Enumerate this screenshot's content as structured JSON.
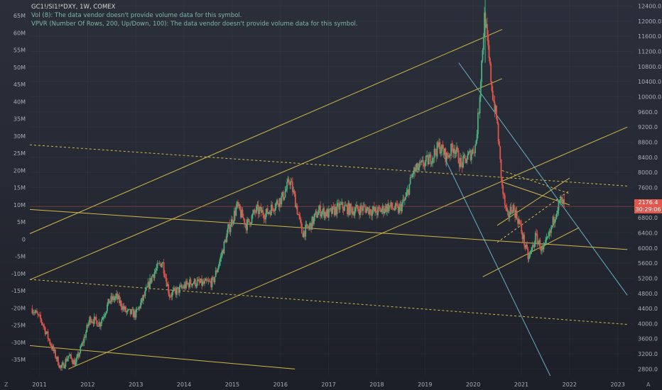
{
  "header": {
    "title": "GC1!/SI1!*DXY, 1W, COMEX",
    "vol_note": "Vol (8): The data vendor doesn't provide volume data for this symbol.",
    "vpvr_note": "VPVR (Number Of Rows, 200, Up/Down, 100): The data vendor doesn't provide volume data for this symbol."
  },
  "price_tag": {
    "price": "2176.4",
    "countdown": "30:29:06"
  },
  "corner_labels": {
    "left": "Z",
    "right": "A"
  },
  "colors": {
    "up": "#4caf7d",
    "down": "#e0534b",
    "channel": "#e6c84a",
    "trend": "#6fbfd0",
    "axis_text": "#a9adb7",
    "price_line": "#e1574d"
  },
  "chart_data": {
    "type": "candlestick",
    "title": "GC1!/SI1!*DXY, 1W, COMEX",
    "x_tick_labels": [
      "2011",
      "2012",
      "2013",
      "2014",
      "2015",
      "2016",
      "2017",
      "2018",
      "2019",
      "2020",
      "2021",
      "2022",
      "2023"
    ],
    "x_range": [
      2010.8,
      2023.3
    ],
    "y_tick_labels": [
      "12400.0",
      "12000.0",
      "11600.0",
      "11200.0",
      "10800.0",
      "10400.0",
      "10000.0",
      "9600.0",
      "9200.0",
      "8800.0",
      "8400.0",
      "8000.0",
      "7600.0",
      "7200.0",
      "6800.0",
      "6400.0",
      "6000.0",
      "5600.0",
      "5200.0",
      "4800.0",
      "4400.0",
      "4000.0",
      "3600.0",
      "3200.0",
      "2800.0"
    ],
    "y_range": [
      2620,
      12560
    ],
    "left_axis_labels": [
      "65M",
      "60M",
      "55M",
      "50M",
      "45M",
      "40M",
      "35M",
      "30M",
      "25M",
      "20M",
      "15M",
      "10M",
      "5M",
      "0",
      "-5M",
      "-10M",
      "-15M",
      "-20M",
      "-25M",
      "-30M",
      "-35M"
    ],
    "last_price": 2176.4,
    "anchors": [
      [
        2010.85,
        4400
      ],
      [
        2011.05,
        4050
      ],
      [
        2011.25,
        3400
      ],
      [
        2011.45,
        2800
      ],
      [
        2011.6,
        3150
      ],
      [
        2011.75,
        2950
      ],
      [
        2011.9,
        3500
      ],
      [
        2012.05,
        4150
      ],
      [
        2012.25,
        4000
      ],
      [
        2012.45,
        4600
      ],
      [
        2012.6,
        4700
      ],
      [
        2012.8,
        4300
      ],
      [
        2013.0,
        4250
      ],
      [
        2013.2,
        4800
      ],
      [
        2013.35,
        5300
      ],
      [
        2013.55,
        5650
      ],
      [
        2013.7,
        4750
      ],
      [
        2013.9,
        4900
      ],
      [
        2014.15,
        5100
      ],
      [
        2014.4,
        5050
      ],
      [
        2014.6,
        5100
      ],
      [
        2014.75,
        5700
      ],
      [
        2014.9,
        6400
      ],
      [
        2015.1,
        7100
      ],
      [
        2015.3,
        6600
      ],
      [
        2015.5,
        7000
      ],
      [
        2015.7,
        6900
      ],
      [
        2015.85,
        7100
      ],
      [
        2016.05,
        7350
      ],
      [
        2016.2,
        7800
      ],
      [
        2016.3,
        7300
      ],
      [
        2016.45,
        6400
      ],
      [
        2016.6,
        6550
      ],
      [
        2016.8,
        7000
      ],
      [
        2017.0,
        6900
      ],
      [
        2017.25,
        7100
      ],
      [
        2017.5,
        7000
      ],
      [
        2017.75,
        7050
      ],
      [
        2018.0,
        6950
      ],
      [
        2018.25,
        7100
      ],
      [
        2018.45,
        7000
      ],
      [
        2018.6,
        7300
      ],
      [
        2018.75,
        8000
      ],
      [
        2018.9,
        8150
      ],
      [
        2019.1,
        8350
      ],
      [
        2019.3,
        8700
      ],
      [
        2019.45,
        8400
      ],
      [
        2019.6,
        8700
      ],
      [
        2019.75,
        8200
      ],
      [
        2019.95,
        8500
      ],
      [
        2020.05,
        8700
      ],
      [
        2020.12,
        9700
      ],
      [
        2020.18,
        11000
      ],
      [
        2020.24,
        12200
      ],
      [
        2020.32,
        11100
      ],
      [
        2020.4,
        10100
      ],
      [
        2020.5,
        9300
      ],
      [
        2020.6,
        7600
      ],
      [
        2020.7,
        6800
      ],
      [
        2020.82,
        7100
      ],
      [
        2020.95,
        6700
      ],
      [
        2021.05,
        6200
      ],
      [
        2021.15,
        5700
      ],
      [
        2021.3,
        6300
      ],
      [
        2021.45,
        5900
      ],
      [
        2021.6,
        6400
      ],
      [
        2021.72,
        7000
      ],
      [
        2021.82,
        7250
      ],
      [
        2021.9,
        7100
      ]
    ],
    "lines": [
      {
        "kind": "channel",
        "style": "solid",
        "p1": [
          2010.8,
          6380
        ],
        "p2": [
          2020.6,
          11780
        ]
      },
      {
        "kind": "channel",
        "style": "solid",
        "p1": [
          2010.8,
          5160
        ],
        "p2": [
          2020.6,
          10480
        ]
      },
      {
        "kind": "channel",
        "style": "solid",
        "p1": [
          2011.6,
          2800
        ],
        "p2": [
          2023.2,
          9200
        ]
      },
      {
        "kind": "channel",
        "style": "solid",
        "p1": [
          2010.8,
          7020
        ],
        "p2": [
          2023.2,
          5960
        ]
      },
      {
        "kind": "channel",
        "style": "solid",
        "p1": [
          2010.8,
          3420
        ],
        "p2": [
          2016.3,
          2800
        ]
      },
      {
        "kind": "channel",
        "style": "dashed",
        "p1": [
          2010.8,
          8730
        ],
        "p2": [
          2023.2,
          7640
        ]
      },
      {
        "kind": "channel",
        "style": "dashed",
        "p1": [
          2010.8,
          5170
        ],
        "p2": [
          2023.2,
          3980
        ]
      },
      {
        "kind": "channel",
        "style": "solid",
        "p1": [
          2020.5,
          6600
        ],
        "p2": [
          2022.0,
          7850
        ]
      },
      {
        "kind": "channel",
        "style": "solid",
        "p1": [
          2020.2,
          5240
        ],
        "p2": [
          2022.2,
          6540
        ]
      },
      {
        "kind": "channel",
        "style": "solid",
        "p1": [
          2020.6,
          7750
        ],
        "p2": [
          2022.0,
          7140
        ]
      },
      {
        "kind": "channel",
        "style": "dashed",
        "p1": [
          2020.6,
          8050
        ],
        "p2": [
          2022.0,
          7440
        ]
      },
      {
        "kind": "channel",
        "style": "dashed",
        "p1": [
          2020.5,
          6150
        ],
        "p2": [
          2022.0,
          7520
        ]
      },
      {
        "kind": "trend",
        "style": "solid",
        "p1": [
          2019.7,
          10900
        ],
        "p2": [
          2023.2,
          4750
        ]
      },
      {
        "kind": "trend",
        "style": "solid",
        "p1": [
          2019.4,
          8400
        ],
        "p2": [
          2021.6,
          2620
        ]
      }
    ]
  }
}
